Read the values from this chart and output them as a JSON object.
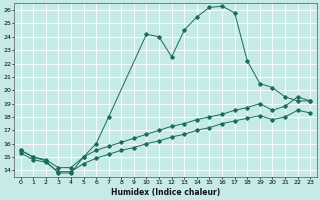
{
  "xlabel": "Humidex (Indice chaleur)",
  "bg_color": "#c5eae8",
  "line_color": "#1a6b5a",
  "grid_color": "#ffffff",
  "xlim": [
    -0.5,
    23.5
  ],
  "ylim": [
    13.5,
    26.5
  ],
  "yticks": [
    14,
    15,
    16,
    17,
    18,
    19,
    20,
    21,
    22,
    23,
    24,
    25,
    26
  ],
  "xticks": [
    0,
    1,
    2,
    3,
    4,
    5,
    6,
    7,
    8,
    9,
    10,
    11,
    12,
    13,
    14,
    15,
    16,
    17,
    18,
    19,
    20,
    21,
    22,
    23
  ],
  "series1_x": [
    0,
    1,
    2,
    3,
    4,
    5,
    6,
    7,
    10,
    11,
    12,
    13,
    14,
    15,
    16,
    17,
    18,
    19,
    20,
    21,
    22,
    23
  ],
  "series1_y": [
    15.5,
    15.0,
    14.7,
    13.8,
    13.8,
    15.0,
    16.0,
    18.0,
    24.2,
    24.0,
    22.5,
    24.5,
    25.5,
    26.2,
    26.3,
    25.8,
    22.2,
    20.5,
    20.2,
    19.5,
    19.2,
    19.2
  ],
  "series2_x": [
    0,
    1,
    2,
    3,
    4,
    5,
    6,
    7,
    8,
    9,
    10,
    11,
    12,
    13,
    14,
    15,
    16,
    17,
    18,
    19,
    20,
    21,
    22,
    23
  ],
  "series2_y": [
    15.5,
    15.0,
    14.8,
    14.2,
    14.2,
    15.0,
    15.5,
    15.8,
    16.1,
    16.4,
    16.7,
    17.0,
    17.3,
    17.5,
    17.8,
    18.0,
    18.2,
    18.5,
    18.7,
    19.0,
    18.5,
    18.8,
    19.5,
    19.2
  ],
  "series3_x": [
    0,
    1,
    2,
    3,
    4,
    5,
    6,
    7,
    8,
    9,
    10,
    11,
    12,
    13,
    14,
    15,
    16,
    17,
    18,
    19,
    20,
    21,
    22,
    23
  ],
  "series3_y": [
    15.3,
    14.8,
    14.6,
    13.9,
    13.9,
    14.5,
    14.9,
    15.2,
    15.5,
    15.7,
    16.0,
    16.2,
    16.5,
    16.7,
    17.0,
    17.2,
    17.5,
    17.7,
    17.9,
    18.1,
    17.8,
    18.0,
    18.5,
    18.3
  ]
}
